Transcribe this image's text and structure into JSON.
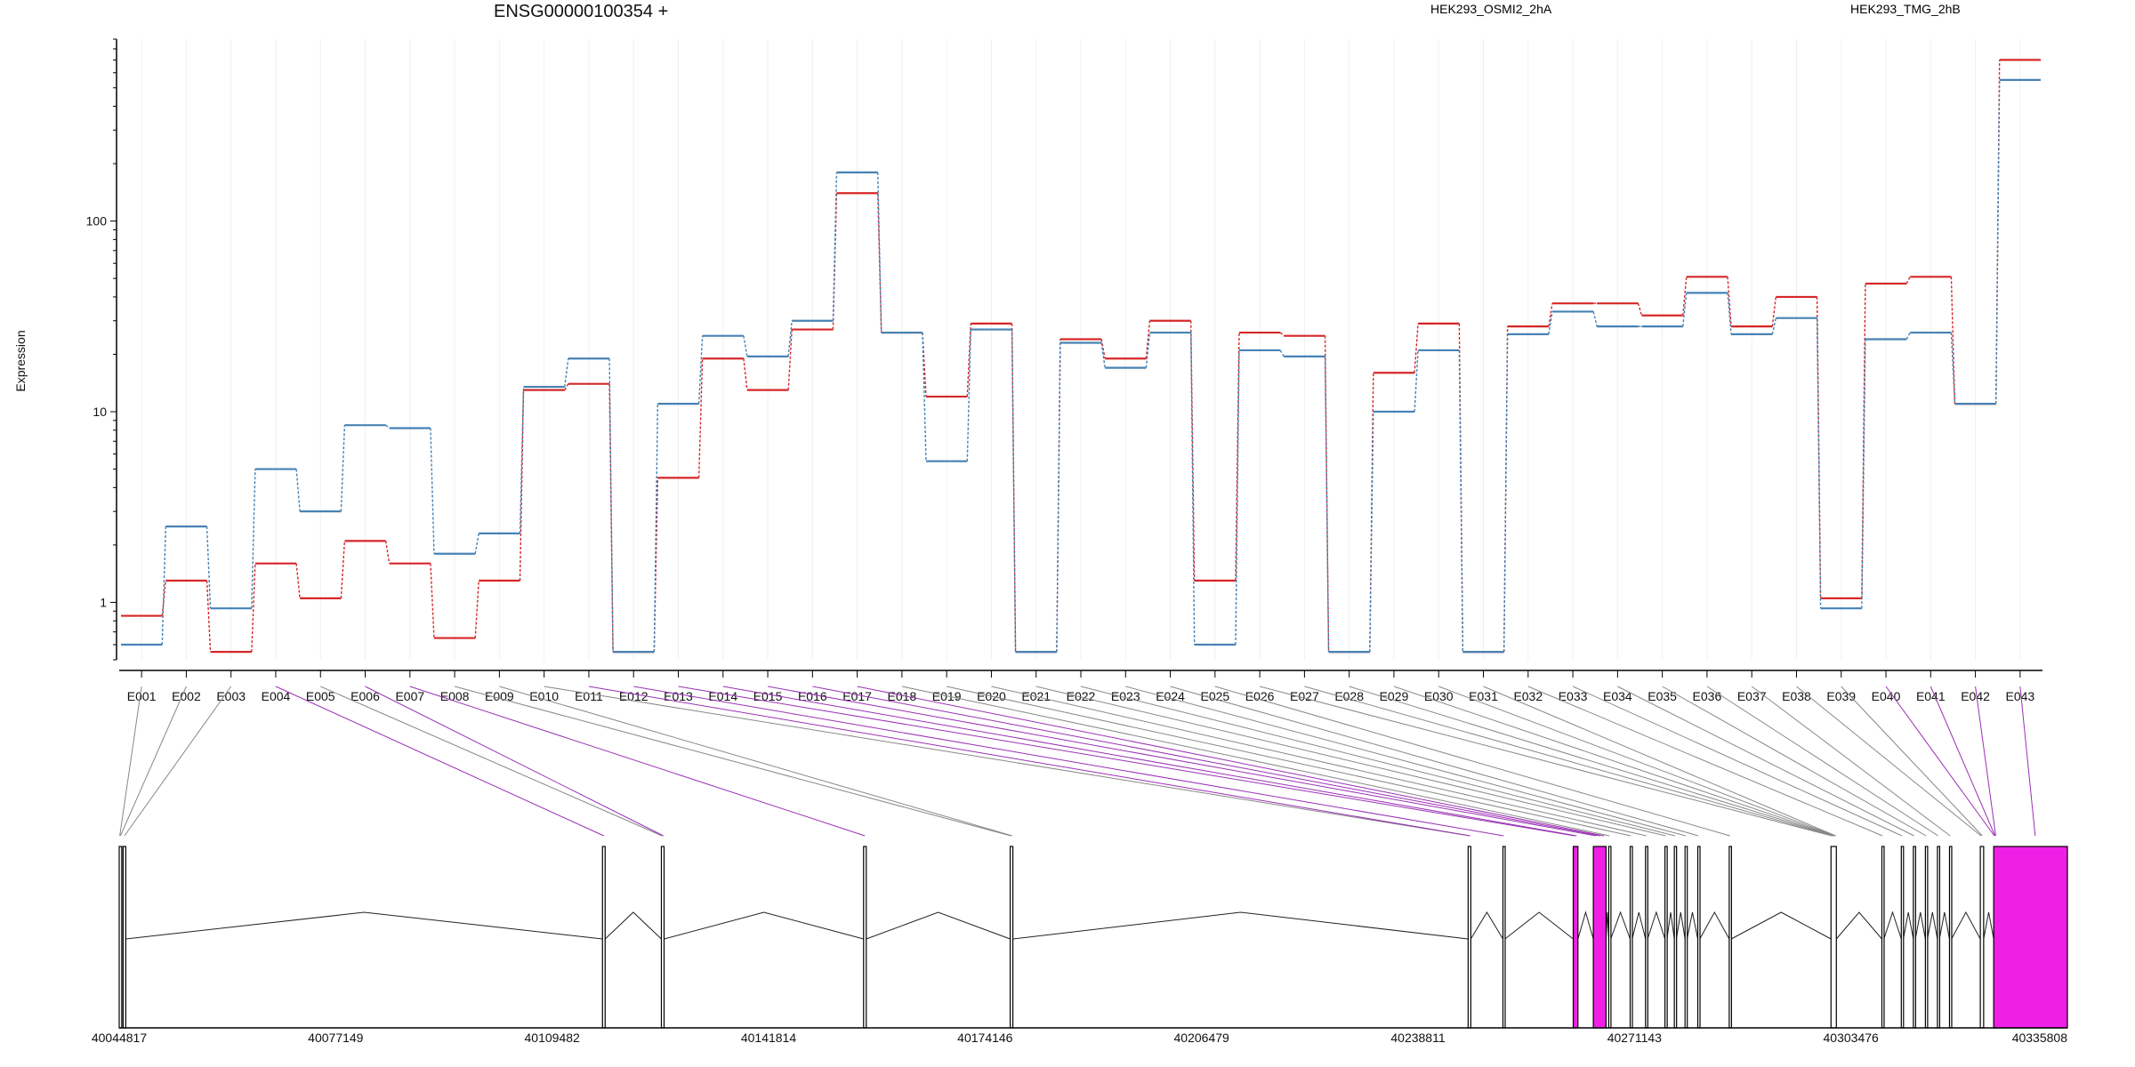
{
  "page": {
    "title": "ENSG00000100354 +",
    "ylabel": "Expression"
  },
  "chart_data": {
    "type": "line",
    "title": "ENSG00000100354 +",
    "xlabel": "",
    "ylabel": "Expression",
    "y_scale": "log",
    "ylim": [
      0.5,
      900
    ],
    "y_ticks": [
      1,
      10,
      100
    ],
    "y_tick_labels": [
      "1",
      "10",
      "100"
    ],
    "grid": "vertical",
    "legend": "top",
    "categories": [
      "E001",
      "E002",
      "E003",
      "E004",
      "E005",
      "E006",
      "E007",
      "E008",
      "E009",
      "E010",
      "E011",
      "E012",
      "E013",
      "E014",
      "E015",
      "E016",
      "E017",
      "E018",
      "E019",
      "E020",
      "E021",
      "E022",
      "E023",
      "E024",
      "E025",
      "E026",
      "E027",
      "E028",
      "E029",
      "E030",
      "E031",
      "E032",
      "E033",
      "E034",
      "E035",
      "E036",
      "E037",
      "E038",
      "E039",
      "E040",
      "E041",
      "E042",
      "E043"
    ],
    "series": [
      {
        "name": "HEK293_OSMI2_2hA",
        "color": "#d62728",
        "values": [
          0.85,
          1.3,
          0.55,
          1.6,
          1.05,
          2.1,
          1.6,
          0.65,
          1.3,
          13,
          14,
          0.55,
          4.5,
          19,
          13,
          27,
          140,
          26,
          12,
          29,
          0.55,
          24,
          19,
          30,
          1.3,
          26,
          25,
          0.55,
          16,
          29,
          0.55,
          28,
          37,
          37,
          32,
          51,
          28,
          40,
          1.05,
          47,
          51,
          11,
          700
        ]
      },
      {
        "name": "HEK293_TMG_2hB",
        "color": "#4682b4",
        "values": [
          0.6,
          2.5,
          0.93,
          5,
          3,
          8.5,
          8.2,
          1.8,
          2.3,
          13.5,
          19,
          0.55,
          11,
          25,
          19.5,
          30,
          180,
          26,
          5.5,
          27,
          0.55,
          23,
          17,
          26,
          0.6,
          21,
          19.5,
          0.55,
          10,
          21,
          0.55,
          25.5,
          33.5,
          28,
          28,
          42,
          25.5,
          31,
          0.93,
          24,
          26,
          11,
          550
        ]
      }
    ],
    "gene_model": {
      "axis_ticks": [
        40044817,
        40077149,
        40109482,
        40141814,
        40174146,
        40206479,
        40238811,
        40271143,
        40303476,
        40335808
      ],
      "range": [
        40044817,
        40335808
      ],
      "exons": [
        {
          "start": 40044817,
          "end": 40045200,
          "highlight": false
        },
        {
          "start": 40045400,
          "end": 40045800,
          "highlight": false
        },
        {
          "start": 40117000,
          "end": 40117400,
          "highlight": false
        },
        {
          "start": 40125800,
          "end": 40126200,
          "highlight": false
        },
        {
          "start": 40156000,
          "end": 40156400,
          "highlight": false
        },
        {
          "start": 40177900,
          "end": 40178300,
          "highlight": false
        },
        {
          "start": 40246300,
          "end": 40246700,
          "highlight": false
        },
        {
          "start": 40251500,
          "end": 40251800,
          "highlight": false
        },
        {
          "start": 40262000,
          "end": 40262700,
          "highlight": true
        },
        {
          "start": 40265000,
          "end": 40266900,
          "highlight": true
        },
        {
          "start": 40267300,
          "end": 40267600,
          "highlight": false
        },
        {
          "start": 40270500,
          "end": 40270800,
          "highlight": false
        },
        {
          "start": 40272800,
          "end": 40273100,
          "highlight": false
        },
        {
          "start": 40275700,
          "end": 40276000,
          "highlight": false
        },
        {
          "start": 40277100,
          "end": 40277400,
          "highlight": false
        },
        {
          "start": 40278700,
          "end": 40279000,
          "highlight": false
        },
        {
          "start": 40280600,
          "end": 40280900,
          "highlight": false
        },
        {
          "start": 40285300,
          "end": 40285600,
          "highlight": false
        },
        {
          "start": 40300500,
          "end": 40301300,
          "highlight": false
        },
        {
          "start": 40308100,
          "end": 40308400,
          "highlight": false
        },
        {
          "start": 40311000,
          "end": 40311300,
          "highlight": false
        },
        {
          "start": 40312800,
          "end": 40313100,
          "highlight": false
        },
        {
          "start": 40314600,
          "end": 40314900,
          "highlight": false
        },
        {
          "start": 40316400,
          "end": 40316700,
          "highlight": false
        },
        {
          "start": 40318200,
          "end": 40318500,
          "highlight": false
        },
        {
          "start": 40322800,
          "end": 40323300,
          "highlight": false
        },
        {
          "start": 40324800,
          "end": 40335808,
          "highlight": true
        }
      ],
      "exon_connections": [
        {
          "bin": "E001",
          "pos": 40044900,
          "highlight": false
        },
        {
          "bin": "E002",
          "pos": 40045000,
          "highlight": false
        },
        {
          "bin": "E003",
          "pos": 40045600,
          "highlight": false
        },
        {
          "bin": "E004",
          "pos": 40117200,
          "highlight": true
        },
        {
          "bin": "E005",
          "pos": 40125900,
          "highlight": false
        },
        {
          "bin": "E006",
          "pos": 40126100,
          "highlight": true
        },
        {
          "bin": "E007",
          "pos": 40156200,
          "highlight": true
        },
        {
          "bin": "E008",
          "pos": 40178000,
          "highlight": false
        },
        {
          "bin": "E009",
          "pos": 40178200,
          "highlight": false
        },
        {
          "bin": "E010",
          "pos": 40246500,
          "highlight": false
        },
        {
          "bin": "E011",
          "pos": 40246600,
          "highlight": true
        },
        {
          "bin": "E012",
          "pos": 40251600,
          "highlight": true
        },
        {
          "bin": "E013",
          "pos": 40262200,
          "highlight": true
        },
        {
          "bin": "E014",
          "pos": 40262500,
          "highlight": true
        },
        {
          "bin": "E015",
          "pos": 40265400,
          "highlight": true
        },
        {
          "bin": "E016",
          "pos": 40266000,
          "highlight": true
        },
        {
          "bin": "E017",
          "pos": 40266600,
          "highlight": true
        },
        {
          "bin": "E018",
          "pos": 40267400,
          "highlight": false
        },
        {
          "bin": "E019",
          "pos": 40270600,
          "highlight": false
        },
        {
          "bin": "E020",
          "pos": 40272900,
          "highlight": false
        },
        {
          "bin": "E021",
          "pos": 40275800,
          "highlight": false
        },
        {
          "bin": "E022",
          "pos": 40277200,
          "highlight": false
        },
        {
          "bin": "E023",
          "pos": 40278800,
          "highlight": false
        },
        {
          "bin": "E024",
          "pos": 40280700,
          "highlight": false
        },
        {
          "bin": "E025",
          "pos": 40285400,
          "highlight": false
        },
        {
          "bin": "E026",
          "pos": 40300600,
          "highlight": false
        },
        {
          "bin": "E027",
          "pos": 40300800,
          "highlight": false
        },
        {
          "bin": "E028",
          "pos": 40300900,
          "highlight": false
        },
        {
          "bin": "E029",
          "pos": 40301000,
          "highlight": false
        },
        {
          "bin": "E030",
          "pos": 40301100,
          "highlight": false
        },
        {
          "bin": "E031",
          "pos": 40301200,
          "highlight": false
        },
        {
          "bin": "E032",
          "pos": 40308200,
          "highlight": false
        },
        {
          "bin": "E033",
          "pos": 40311100,
          "highlight": false
        },
        {
          "bin": "E034",
          "pos": 40312900,
          "highlight": false
        },
        {
          "bin": "E035",
          "pos": 40314700,
          "highlight": false
        },
        {
          "bin": "E036",
          "pos": 40316500,
          "highlight": false
        },
        {
          "bin": "E037",
          "pos": 40318300,
          "highlight": false
        },
        {
          "bin": "E038",
          "pos": 40322900,
          "highlight": false
        },
        {
          "bin": "E039",
          "pos": 40323100,
          "highlight": false
        },
        {
          "bin": "E040",
          "pos": 40324900,
          "highlight": true
        },
        {
          "bin": "E041",
          "pos": 40325000,
          "highlight": true
        },
        {
          "bin": "E042",
          "pos": 40325100,
          "highlight": true
        },
        {
          "bin": "E043",
          "pos": 40331000,
          "highlight": true
        }
      ]
    }
  }
}
